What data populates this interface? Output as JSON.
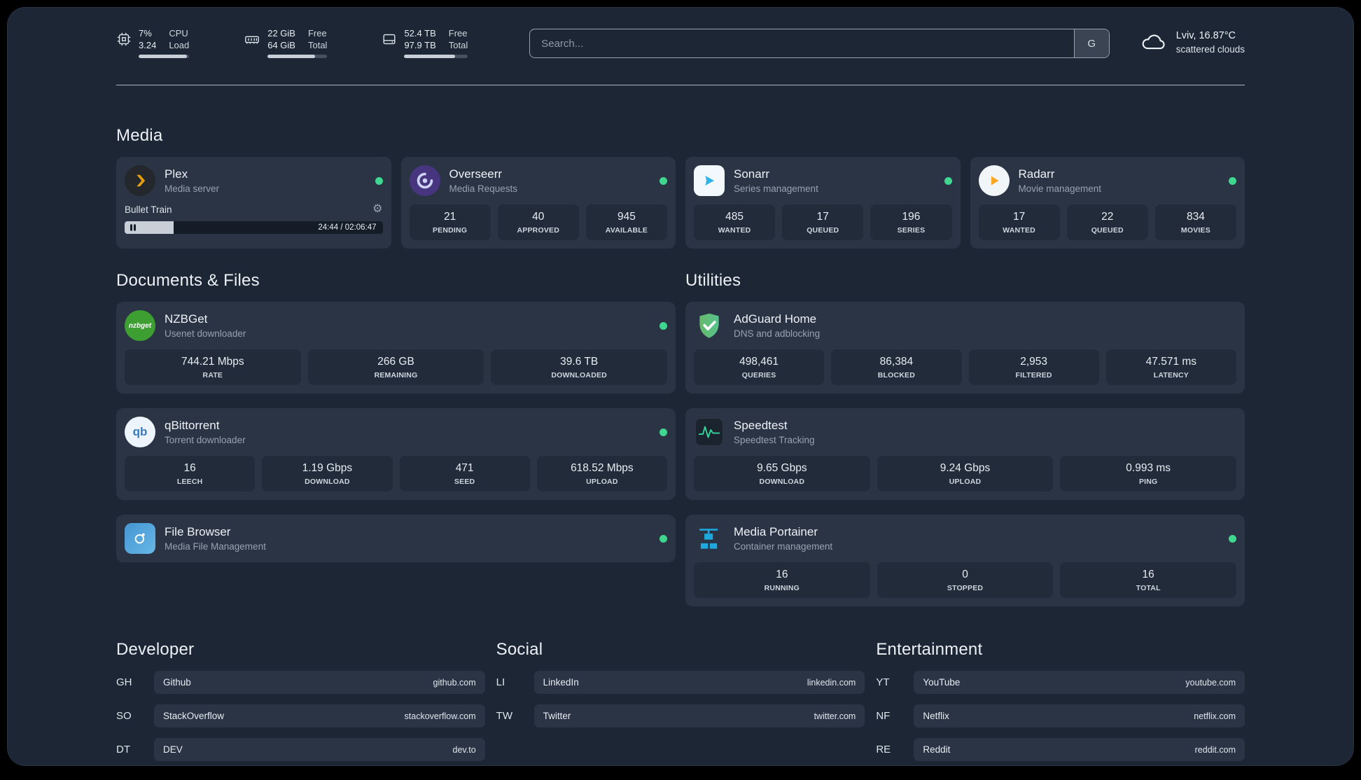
{
  "colors": {
    "background": "#1c2634",
    "card": "#2a3444",
    "tile": "#212b39",
    "status_online": "#3fd68f",
    "plex_accent": "#e5a00d",
    "sonarr_accent": "#30b4e8",
    "radarr_accent": "#f7a723",
    "adguard_green": "#5cb85c",
    "portainer_blue": "#1ea8dd",
    "speedtest_green": "#36d39a"
  },
  "icons": {
    "gear": "⚙"
  },
  "topbar": {
    "cpu": {
      "percent": "7%",
      "load": "3.24",
      "label_top": "CPU",
      "label_bottom": "Load",
      "bar_pct": 95
    },
    "ram": {
      "free": "22 GiB",
      "total": "64 GiB",
      "label_top": "Free",
      "label_bottom": "Total",
      "bar_pct": 80
    },
    "disk": {
      "free": "52.4 TB",
      "total": "97.9 TB",
      "label_top": "Free",
      "label_bottom": "Total",
      "bar_pct": 80
    },
    "search": {
      "placeholder": "Search...",
      "button_label": "G"
    },
    "weather": {
      "location": "Lviv, 16.87°C",
      "condition": "scattered clouds"
    }
  },
  "sections": {
    "media": {
      "title": "Media",
      "plex": {
        "name": "Plex",
        "subtitle": "Media server",
        "now_playing": "Bullet Train",
        "time": "24:44 / 02:06:47",
        "progress_pct": 19
      },
      "overseerr": {
        "name": "Overseerr",
        "subtitle": "Media Requests",
        "stats": [
          {
            "value": "21",
            "label": "PENDING"
          },
          {
            "value": "40",
            "label": "APPROVED"
          },
          {
            "value": "945",
            "label": "AVAILABLE"
          }
        ]
      },
      "sonarr": {
        "name": "Sonarr",
        "subtitle": "Series management",
        "stats": [
          {
            "value": "485",
            "label": "WANTED"
          },
          {
            "value": "17",
            "label": "QUEUED"
          },
          {
            "value": "196",
            "label": "SERIES"
          }
        ]
      },
      "radarr": {
        "name": "Radarr",
        "subtitle": "Movie management",
        "stats": [
          {
            "value": "17",
            "label": "WANTED"
          },
          {
            "value": "22",
            "label": "QUEUED"
          },
          {
            "value": "834",
            "label": "MOVIES"
          }
        ]
      }
    },
    "documents": {
      "title": "Documents & Files",
      "nzbget": {
        "name": "NZBGet",
        "subtitle": "Usenet downloader",
        "stats": [
          {
            "value": "744.21 Mbps",
            "label": "RATE"
          },
          {
            "value": "266 GB",
            "label": "REMAINING"
          },
          {
            "value": "39.6 TB",
            "label": "DOWNLOADED"
          }
        ]
      },
      "qbittorrent": {
        "name": "qBittorrent",
        "subtitle": "Torrent downloader",
        "stats": [
          {
            "value": "16",
            "label": "LEECH"
          },
          {
            "value": "1.19 Gbps",
            "label": "DOWNLOAD"
          },
          {
            "value": "471",
            "label": "SEED"
          },
          {
            "value": "618.52 Mbps",
            "label": "UPLOAD"
          }
        ]
      },
      "filebrowser": {
        "name": "File Browser",
        "subtitle": "Media File Management"
      }
    },
    "utilities": {
      "title": "Utilities",
      "adguard": {
        "name": "AdGuard Home",
        "subtitle": "DNS and adblocking",
        "stats": [
          {
            "value": "498,461",
            "label": "QUERIES"
          },
          {
            "value": "86,384",
            "label": "BLOCKED"
          },
          {
            "value": "2,953",
            "label": "FILTERED"
          },
          {
            "value": "47.571 ms",
            "label": "LATENCY"
          }
        ]
      },
      "speedtest": {
        "name": "Speedtest",
        "subtitle": "Speedtest Tracking",
        "stats": [
          {
            "value": "9.65 Gbps",
            "label": "DOWNLOAD"
          },
          {
            "value": "9.24 Gbps",
            "label": "UPLOAD"
          },
          {
            "value": "0.993 ms",
            "label": "PING"
          }
        ]
      },
      "portainer": {
        "name": "Media Portainer",
        "subtitle": "Container management",
        "stats": [
          {
            "value": "16",
            "label": "RUNNING"
          },
          {
            "value": "0",
            "label": "STOPPED"
          },
          {
            "value": "16",
            "label": "TOTAL"
          }
        ]
      }
    }
  },
  "bookmarks": {
    "developer": {
      "title": "Developer",
      "items": [
        {
          "abbr": "GH",
          "name": "Github",
          "domain": "github.com"
        },
        {
          "abbr": "SO",
          "name": "StackOverflow",
          "domain": "stackoverflow.com"
        },
        {
          "abbr": "DT",
          "name": "DEV",
          "domain": "dev.to"
        }
      ]
    },
    "social": {
      "title": "Social",
      "items": [
        {
          "abbr": "LI",
          "name": "LinkedIn",
          "domain": "linkedin.com"
        },
        {
          "abbr": "TW",
          "name": "Twitter",
          "domain": "twitter.com"
        }
      ]
    },
    "entertainment": {
      "title": "Entertainment",
      "items": [
        {
          "abbr": "YT",
          "name": "YouTube",
          "domain": "youtube.com"
        },
        {
          "abbr": "NF",
          "name": "Netflix",
          "domain": "netflix.com"
        },
        {
          "abbr": "RE",
          "name": "Reddit",
          "domain": "reddit.com"
        }
      ]
    }
  }
}
